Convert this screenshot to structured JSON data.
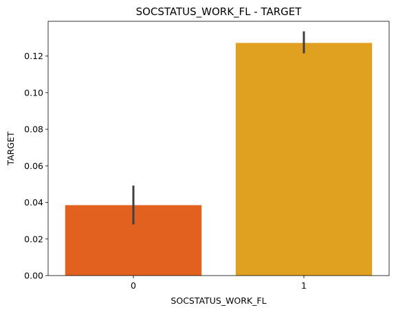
{
  "chart_data": {
    "type": "bar",
    "title": "SOCSTATUS_WORK_FL - TARGET",
    "xlabel": "SOCSTATUS_WORK_FL",
    "ylabel": "TARGET",
    "categories": [
      "0",
      "1"
    ],
    "values": [
      0.0385,
      0.1272
    ],
    "error_low": [
      0.028,
      0.1215
    ],
    "error_high": [
      0.0492,
      0.1335
    ],
    "colors": [
      "#e2611f",
      "#e0a020"
    ],
    "error_color": "#3f3f3f",
    "ylim": [
      0,
      0.139
    ],
    "yticks": [
      0.0,
      0.02,
      0.04,
      0.06,
      0.08,
      0.1,
      0.12
    ],
    "ytick_labels": [
      "0.00",
      "0.02",
      "0.04",
      "0.06",
      "0.08",
      "0.10",
      "0.12"
    ],
    "grid": false,
    "legend": "none"
  }
}
